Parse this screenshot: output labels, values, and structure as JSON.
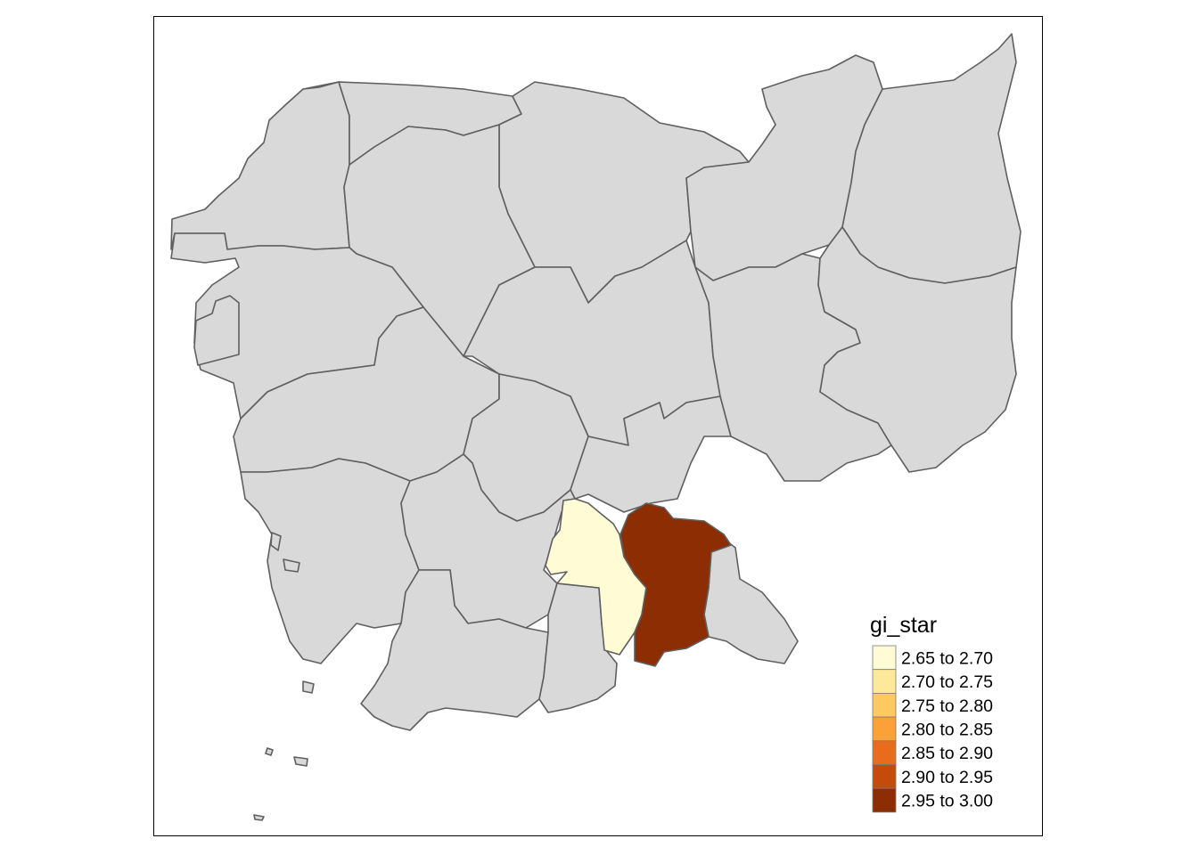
{
  "map": {
    "default_fill": "#d9d9d9",
    "border_color": "#5f5f5f",
    "highlighted_regions": [
      {
        "name": "",
        "class_index": 0,
        "color": "#fffbd5"
      },
      {
        "name": "",
        "class_index": 6,
        "color": "#8c2d04"
      }
    ]
  },
  "legend": {
    "title": "gi_star",
    "position": "bottom-right",
    "classes": [
      {
        "label": "2.65 to 2.70",
        "color": "#fffbd5"
      },
      {
        "label": "2.70 to 2.75",
        "color": "#fee89a"
      },
      {
        "label": "2.75 to 2.80",
        "color": "#fdc960"
      },
      {
        "label": "2.80 to 2.85",
        "color": "#fca137"
      },
      {
        "label": "2.85 to 2.90",
        "color": "#e96b1c"
      },
      {
        "label": "2.90 to 2.95",
        "color": "#c44b0a"
      },
      {
        "label": "2.95 to 3.00",
        "color": "#8c2d04"
      }
    ]
  }
}
